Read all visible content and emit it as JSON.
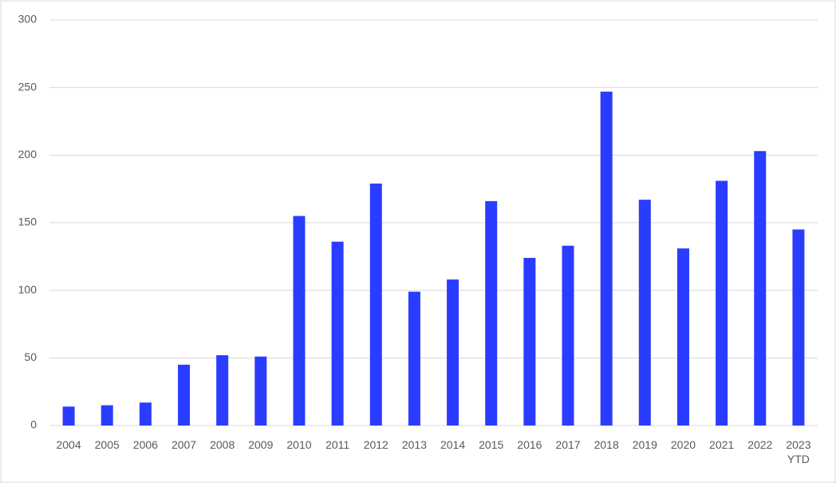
{
  "chart_data": {
    "type": "bar",
    "categories": [
      "2004",
      "2005",
      "2006",
      "2007",
      "2008",
      "2009",
      "2010",
      "2011",
      "2012",
      "2013",
      "2014",
      "2015",
      "2016",
      "2017",
      "2018",
      "2019",
      "2020",
      "2021",
      "2022",
      "2023 YTD"
    ],
    "values": [
      14,
      15,
      17,
      45,
      52,
      51,
      155,
      136,
      179,
      99,
      108,
      166,
      124,
      133,
      247,
      167,
      131,
      181,
      203,
      145
    ],
    "color": "#2a3cff",
    "ylim": [
      0,
      300
    ],
    "yticks": [
      0,
      50,
      100,
      150,
      200,
      250,
      300
    ],
    "grid": true
  }
}
